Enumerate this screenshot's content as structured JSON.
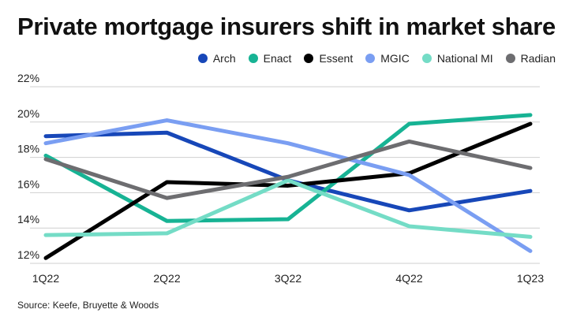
{
  "title": "Private mortgage insurers shift in market share",
  "source": "Source: Keefe, Bruyette & Woods",
  "chart_data": {
    "type": "line",
    "title": "Private mortgage insurers shift in market share",
    "xlabel": "",
    "ylabel": "",
    "categories": [
      "1Q22",
      "2Q22",
      "3Q22",
      "4Q22",
      "1Q23"
    ],
    "y_ticks": [
      "12%",
      "14%",
      "16%",
      "18%",
      "20%",
      "22%"
    ],
    "y_tick_values": [
      12,
      14,
      16,
      18,
      20,
      22
    ],
    "ylim": [
      12,
      22
    ],
    "grid": "horizontal",
    "legend_placement": "top-right",
    "series": [
      {
        "name": "Arch",
        "color": "#1747b8",
        "values": [
          19.2,
          19.4,
          16.7,
          15.0,
          16.1
        ]
      },
      {
        "name": "Enact",
        "color": "#17b394",
        "values": [
          18.1,
          14.4,
          14.5,
          19.9,
          20.4
        ]
      },
      {
        "name": "Essent",
        "color": "#000000",
        "values": [
          12.3,
          16.6,
          16.4,
          17.1,
          19.9
        ]
      },
      {
        "name": "MGIC",
        "color": "#7a9ef2",
        "values": [
          18.8,
          20.1,
          18.8,
          17.0,
          12.7
        ]
      },
      {
        "name": "National MI",
        "color": "#74dcc6",
        "values": [
          13.6,
          13.7,
          16.7,
          14.1,
          13.5
        ]
      },
      {
        "name": "Radian",
        "color": "#6d6d70",
        "values": [
          17.9,
          15.7,
          16.9,
          18.9,
          17.4
        ]
      }
    ]
  }
}
